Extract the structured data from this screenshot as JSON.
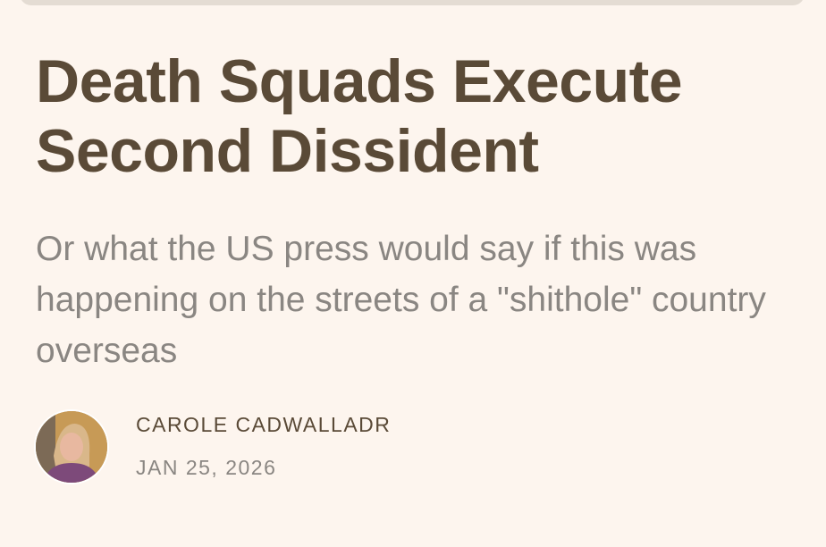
{
  "article": {
    "title": "Death Squads Execute Second Dissident",
    "subtitle": "Or what the US press would say if this was happening on the streets of a \"shithole\" country overseas",
    "author": "CAROLE CADWALLADR",
    "date": "JAN 25, 2026"
  }
}
